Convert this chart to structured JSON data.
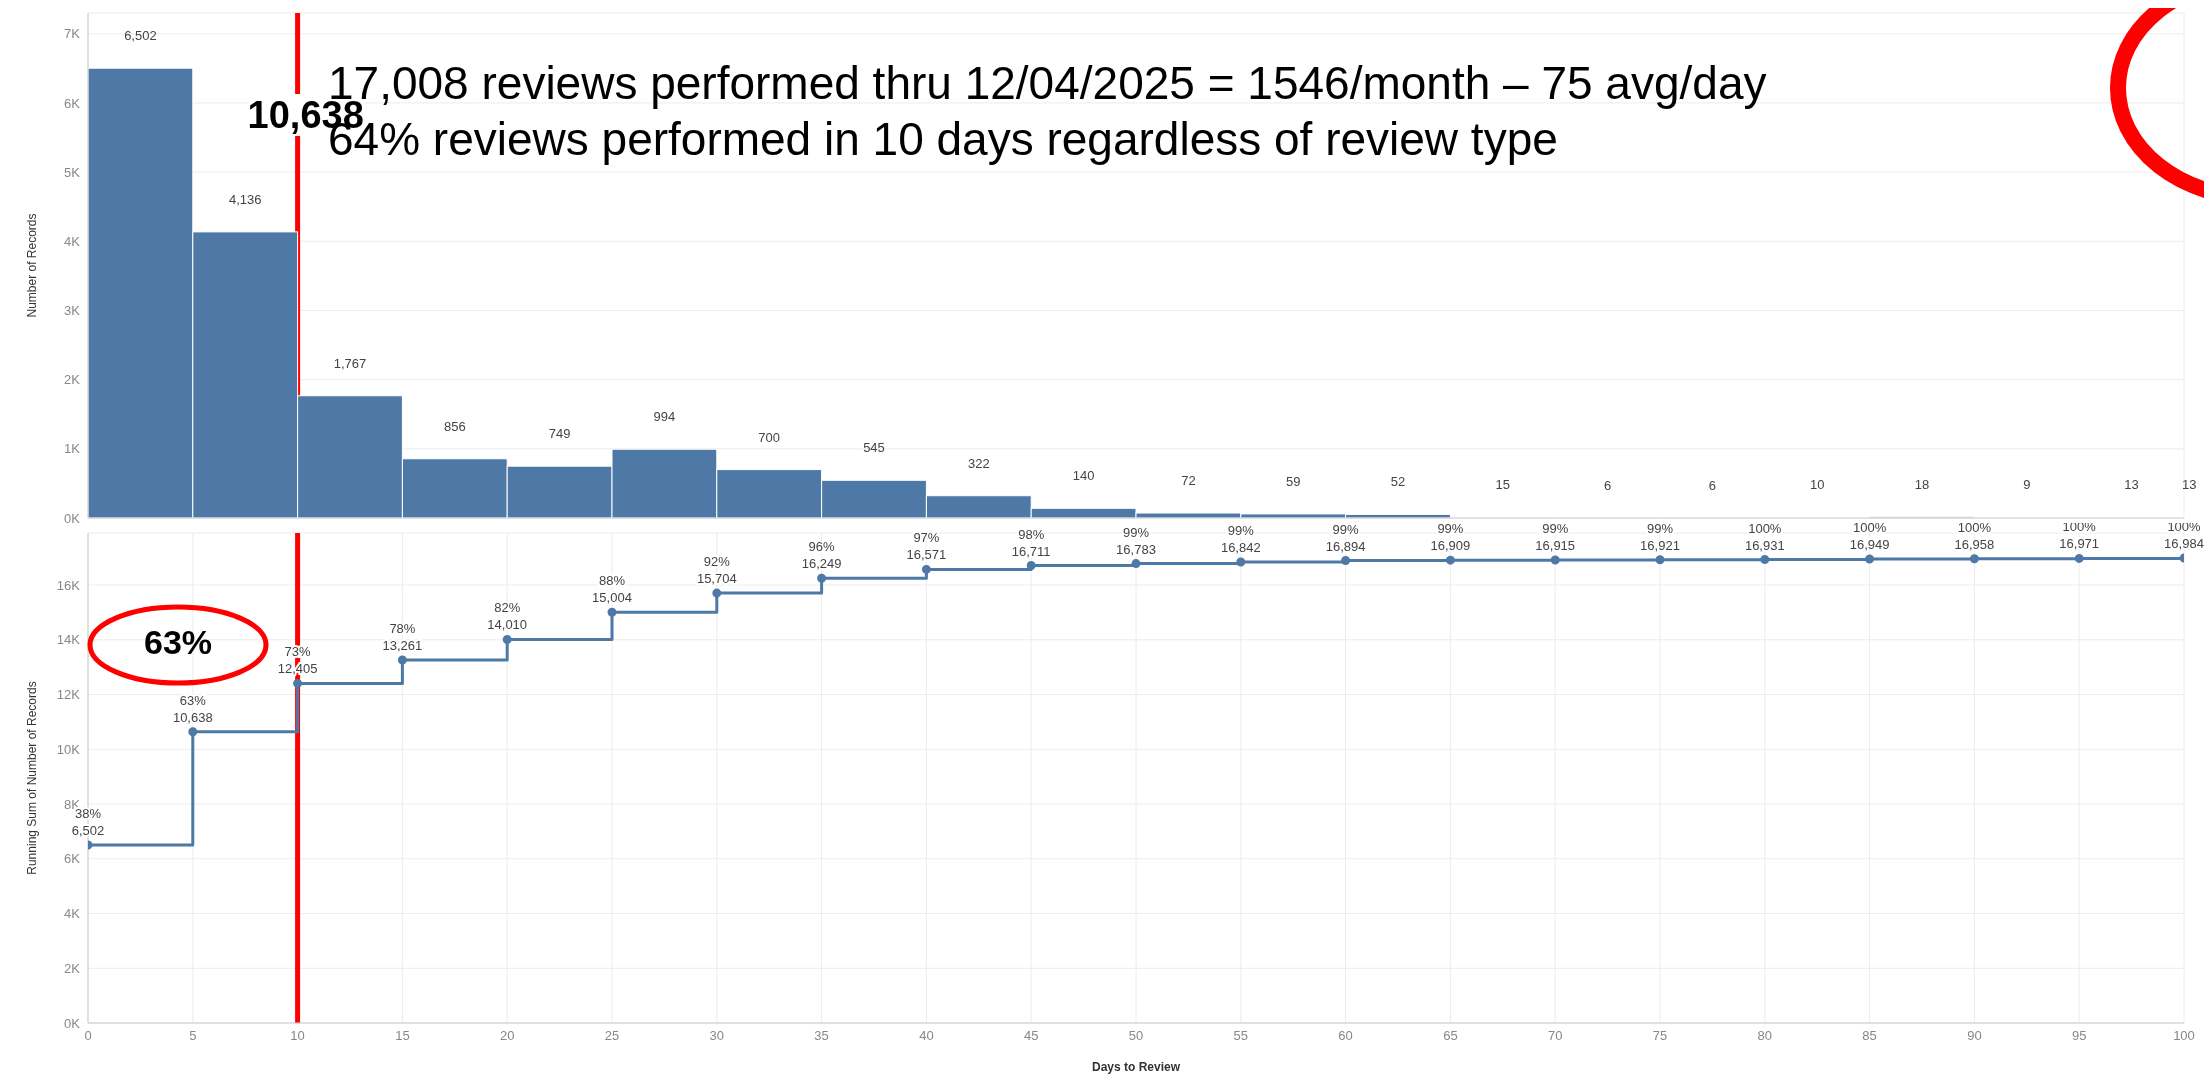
{
  "chart_data": [
    {
      "type": "histogram",
      "title": "17,008 reviews performed thru 12/04/2025 = 1546/month – 75 avg/day",
      "subtitle": "64% reviews performed in 10 days regardless of review type",
      "ylabel": "Number of Records",
      "bins": [
        0,
        5,
        10,
        15,
        20,
        25,
        30,
        35,
        40,
        45,
        50,
        55,
        60,
        65,
        70,
        75,
        80,
        85,
        90,
        95,
        100
      ],
      "values": [
        6502,
        4136,
        1767,
        856,
        749,
        994,
        700,
        545,
        322,
        140,
        72,
        59,
        52,
        15,
        6,
        6,
        10,
        18,
        9,
        13
      ],
      "color": "#4e79a7",
      "value_labels": [
        "6,502",
        "4,136",
        "1,767",
        "856",
        "749",
        "994",
        "700",
        "545",
        "322",
        "140",
        "72",
        "59",
        "52",
        "15",
        "6",
        "6",
        "10",
        "18",
        "9",
        "13"
      ],
      "xlim": [
        0,
        100
      ],
      "xticks": [
        0,
        5,
        10,
        15,
        20,
        25,
        30,
        35,
        40,
        45,
        50,
        55,
        60,
        65,
        70,
        75,
        80,
        85,
        90,
        95,
        100
      ],
      "ylim": [
        0,
        7300
      ],
      "yticks": [
        {
          "value": 0,
          "label": "0K"
        },
        {
          "value": 1000,
          "label": "1K"
        },
        {
          "value": 2000,
          "label": "2K"
        },
        {
          "value": 3000,
          "label": "3K"
        },
        {
          "value": 4000,
          "label": "4K"
        },
        {
          "value": 5000,
          "label": "5K"
        },
        {
          "value": 6000,
          "label": "6K"
        },
        {
          "value": 7000,
          "label": "7K"
        }
      ],
      "tick_labels": "y",
      "grid": true,
      "legend": false,
      "ref_lines": [
        {
          "axis": "x",
          "value": 10,
          "color": "#ff0000"
        }
      ],
      "annotations": [
        {
          "text": "13",
          "x": 100,
          "y": 13
        },
        "10,638"
      ]
    },
    {
      "type": "step",
      "xlabel": "Days to Review",
      "ylabel": "Running Sum of Number of Records",
      "x": [
        0,
        5,
        10,
        15,
        20,
        25,
        30,
        35,
        40,
        45,
        50,
        55,
        60,
        65,
        70,
        75,
        80,
        85,
        90,
        95,
        100
      ],
      "series": [
        {
          "color": "#4e79a7",
          "values": [
            6502,
            10638,
            12405,
            13261,
            14010,
            15004,
            15704,
            16249,
            16571,
            16711,
            16783,
            16842,
            16894,
            16909,
            16915,
            16921,
            16931,
            16949,
            16958,
            16971,
            16984
          ],
          "value_labels": [
            "38%\n6,502",
            "63%\n10,638",
            "73%\n12,405",
            "78%\n13,261",
            "82%\n14,010",
            "88%\n15,004",
            "92%\n15,704",
            "96%\n16,249",
            "97%\n16,571",
            "98%\n16,711",
            "99%\n16,783",
            "99%\n16,842",
            "99%\n16,894",
            "99%\n16,909",
            "99%\n16,915",
            "99%\n16,921",
            "100%\n16,931",
            "100%\n16,949",
            "100%\n16,958",
            "100%\n16,971",
            "100%\n16,984"
          ]
        }
      ],
      "marker": "circle",
      "line_style": "solid",
      "xlim": [
        0,
        100
      ],
      "xticks": [
        0,
        5,
        10,
        15,
        20,
        25,
        30,
        35,
        40,
        45,
        50,
        55,
        60,
        65,
        70,
        75,
        80,
        85,
        90,
        95,
        100
      ],
      "ylim": [
        0,
        17900
      ],
      "yticks": [
        {
          "value": 0,
          "label": "0K"
        },
        {
          "value": 2000,
          "label": "2K"
        },
        {
          "value": 4000,
          "label": "4K"
        },
        {
          "value": 6000,
          "label": "6K"
        },
        {
          "value": 8000,
          "label": "8K"
        },
        {
          "value": 10000,
          "label": "10K"
        },
        {
          "value": 12000,
          "label": "12K"
        },
        {
          "value": 14000,
          "label": "14K"
        },
        {
          "value": 16000,
          "label": "16K"
        }
      ],
      "grid": true,
      "legend": false,
      "ref_lines": [
        {
          "axis": "x",
          "value": 10,
          "color": "#ff0000"
        }
      ],
      "annotations": [
        "63%"
      ]
    }
  ]
}
